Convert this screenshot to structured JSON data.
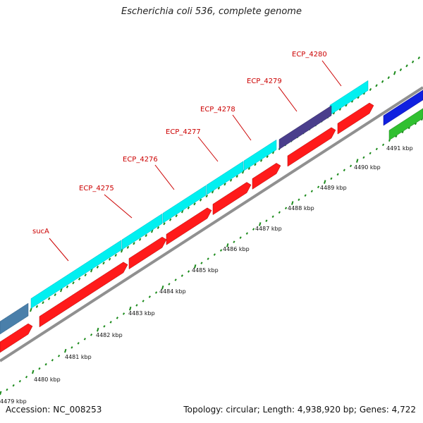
{
  "title": "Escherichia coli 536, complete genome",
  "accession_text": "Accession: NC_008253",
  "summary_text": "Topology: circular; Length: 4,938,920 bp; Genes: 4,722",
  "colors": {
    "cds_forward": "#00f0f0",
    "cds_reverse": "#ff1a1a",
    "cds_dark": "#4a3e8c",
    "cds_steel": "#4a7faa",
    "cds_blue": "#1020e0",
    "cds_green": "#30c030",
    "backbone": "#909090",
    "tick": "#1a8a1a",
    "label": "#cc0000"
  },
  "gene_labels": [
    "sucA",
    "ECP_4275",
    "ECP_4276",
    "ECP_4277",
    "ECP_4278",
    "ECP_4279",
    "ECP_4280"
  ],
  "kbp_labels": [
    "4479 kbp",
    "4480 kbp",
    "4481 kbp",
    "4482 kbp",
    "4483 kbp",
    "4484 kbp",
    "4485 kbp",
    "4486 kbp",
    "4487 kbp",
    "4488 kbp",
    "4489 kbp",
    "4490 kbp",
    "4491 kbp"
  ]
}
